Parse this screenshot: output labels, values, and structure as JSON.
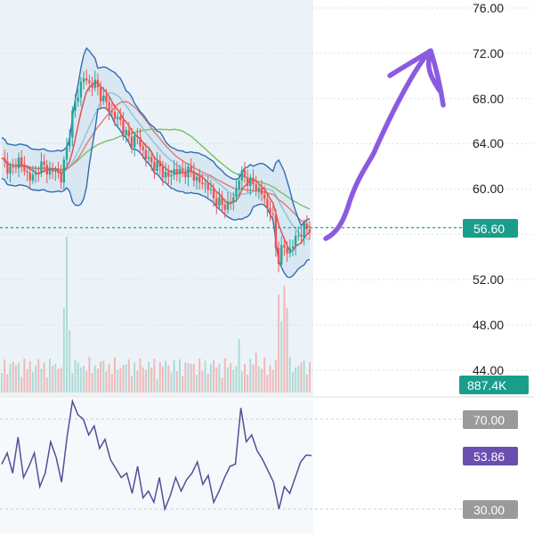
{
  "chart_data": [
    {
      "type": "candlestick",
      "y_axis_ticks": [
        "76.00",
        "72.00",
        "68.00",
        "64.00",
        "60.00",
        "52.00",
        "48.00",
        "44.00"
      ],
      "ylim": [
        43.5,
        77
      ],
      "price_series_approx": [
        62.5,
        62.0,
        61.5,
        62.8,
        61.7,
        61.2,
        60.9,
        62.3,
        61.8,
        61.5,
        61.6,
        61.0,
        63.5,
        66.5,
        68.2,
        70.0,
        69.2,
        69.5,
        68.6,
        67.8,
        67.0,
        66.3,
        66.0,
        64.8,
        64.2,
        64.6,
        63.5,
        62.6,
        62.2,
        62.0,
        61.4,
        61.0,
        61.8,
        61.4,
        61.6,
        61.5,
        60.9,
        60.4,
        60.5,
        59.2,
        59.0,
        58.4,
        58.8,
        59.2,
        61.3,
        61.0,
        60.6,
        60.2,
        59.8,
        58.4,
        58.2,
        53.5,
        55.0,
        54.4,
        55.2,
        56.1,
        56.4,
        56.6
      ],
      "last_price": {
        "label": "56.60",
        "color": "#1a9e8c"
      },
      "volume": {
        "label": "887.4K",
        "color": "#1a9e8c"
      },
      "rsi": {
        "levels": [
          "70.00",
          "30.00"
        ],
        "current": {
          "label": "53.86",
          "color": "#6a4fb0"
        },
        "values_approx": [
          50,
          55,
          46,
          62,
          44,
          49,
          55,
          40,
          46,
          60,
          53,
          42,
          62,
          78,
          72,
          70,
          63,
          67,
          57,
          61,
          52,
          48,
          44,
          46,
          37,
          49,
          35,
          38,
          33,
          44,
          30,
          36,
          44,
          38,
          43,
          46,
          51,
          41,
          45,
          33,
          38,
          44,
          49,
          50,
          75,
          60,
          63,
          56,
          52,
          47,
          42,
          30,
          40,
          37,
          44,
          51,
          54,
          53.86
        ]
      },
      "colors": {
        "up": "#26a69a",
        "down": "#ef5350",
        "bollinger": "#2f6db3",
        "ma_short": "#e0524a",
        "ma_mid": "#8fc4e0",
        "ma_long": "#7cc36a",
        "rsi_line": "#5a4a9a",
        "arrow": "#8a5be0",
        "panel_bg": "#e8f1f8"
      }
    }
  ]
}
